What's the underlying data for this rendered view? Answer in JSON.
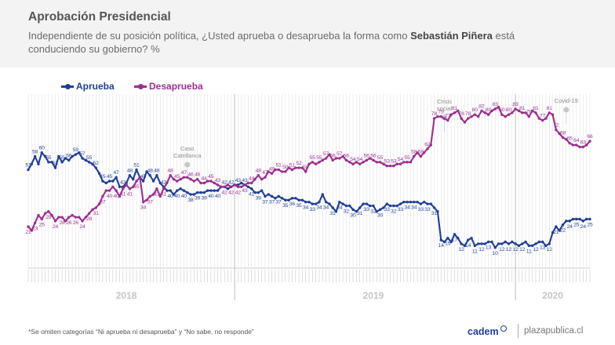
{
  "header": {
    "title": "Aprobación Presidencial",
    "subtitle_pre": "Independiente de su posición política, ¿Usted aprueba o desaprueba la forma como ",
    "subtitle_name": "Sebastián Piñera",
    "subtitle_post": " está conduciendo su gobierno? %"
  },
  "legend": {
    "aprueba": "Aprueba",
    "desaprueba": "Desaprueba"
  },
  "footnote": "*Se omiten categorías “Ni aprueba ni desaprueba” y “No sabe, no responde”",
  "brand": {
    "name": "cadem",
    "site": "plazapublica.cl"
  },
  "colors": {
    "aprueba": "#1f3f98",
    "desaprueba": "#9b2f8f",
    "grid": "#dddddd"
  },
  "events": [
    {
      "line1": "Caso",
      "line2": "Catrillanca",
      "week_index": 47
    },
    {
      "line1": "Crisis",
      "line2": "social",
      "week_index": 123
    },
    {
      "line1": "Covid-19",
      "line2": "",
      "week_index": 159
    }
  ],
  "chart_data": {
    "type": "line",
    "title": "Aprobación Presidencial",
    "x_unit": "weekly surveys",
    "year_labels": [
      {
        "label": "2018",
        "week_index": 29
      },
      {
        "label": "2019",
        "week_index": 102
      },
      {
        "label": "2020",
        "week_index": 155
      }
    ],
    "year_dividers": [
      61,
      144
    ],
    "ylim": [
      0,
      90
    ],
    "series": [
      {
        "name": "Aprueba",
        "values": [
          51,
          54,
          58,
          54,
          60,
          58,
          55,
          55,
          52,
          58,
          55,
          57,
          56,
          58,
          59,
          60,
          57,
          56,
          55,
          54,
          52,
          49,
          45,
          44,
          45,
          45,
          47,
          42,
          42,
          44,
          48,
          46,
          51,
          47,
          45,
          50,
          48,
          45,
          48,
          44,
          42,
          40,
          40,
          38,
          40,
          41,
          40,
          39,
          38,
          38,
          39,
          39,
          39,
          40,
          40,
          40,
          40,
          42,
          42,
          41,
          42,
          43,
          43,
          44,
          43,
          42,
          41,
          39,
          39,
          40,
          37,
          38,
          37,
          36,
          37,
          36,
          35,
          35,
          36,
          36,
          35,
          35,
          34,
          34,
          33,
          33,
          34,
          38,
          34,
          33,
          31,
          29,
          34,
          33,
          32,
          32,
          30,
          29,
          31,
          33,
          33,
          32,
          32,
          29,
          30,
          31,
          33,
          32,
          32,
          32,
          33,
          34,
          34,
          34,
          34,
          34,
          33,
          34,
          33,
          33,
          31,
          29,
          14,
          13,
          15,
          13,
          17,
          15,
          12,
          11,
          14,
          15,
          11,
          12,
          12,
          12,
          13,
          13,
          10,
          12,
          12,
          13,
          12,
          13,
          12,
          11,
          12,
          13,
          11,
          11,
          12,
          13,
          13,
          11,
          12,
          18,
          21,
          19,
          22,
          24,
          24,
          25,
          25,
          25,
          24,
          25,
          25
        ]
      },
      {
        "name": "Desaprueba",
        "values": [
          21,
          19,
          23,
          27,
          25,
          28,
          29,
          27,
          24,
          26,
          26,
          24,
          26,
          27,
          26,
          26,
          24,
          26,
          28,
          30,
          31,
          33,
          37,
          40,
          40,
          42,
          40,
          37,
          41,
          43,
          41,
          42,
          45,
          47,
          34,
          35,
          37,
          38,
          41,
          37,
          41,
          44,
          48,
          46,
          45,
          46,
          47,
          47,
          46,
          45,
          46,
          44,
          44,
          45,
          45,
          44,
          43,
          42,
          42,
          43,
          42,
          43,
          42,
          42,
          43,
          44,
          44,
          46,
          48,
          46,
          47,
          50,
          49,
          51,
          51,
          50,
          50,
          52,
          51,
          52,
          52,
          52,
          50,
          54,
          55,
          54,
          55,
          56,
          57,
          59,
          56,
          57,
          57,
          58,
          56,
          55,
          54,
          55,
          54,
          55,
          56,
          57,
          56,
          55,
          55,
          54,
          53,
          53,
          53,
          54,
          54,
          55,
          55,
          55,
          58,
          60,
          58,
          60,
          62,
          64,
          78,
          79,
          79,
          78,
          77,
          80,
          81,
          82,
          78,
          76,
          78,
          79,
          80,
          79,
          82,
          81,
          80,
          82,
          83,
          84,
          80,
          79,
          80,
          81,
          83,
          82,
          81,
          81,
          79,
          82,
          81,
          78,
          77,
          78,
          81,
          80,
          72,
          70,
          68,
          67,
          65,
          64,
          64,
          63,
          63,
          64,
          66
        ]
      }
    ]
  }
}
